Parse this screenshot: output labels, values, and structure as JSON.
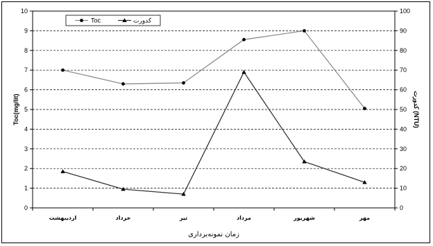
{
  "chart_data": {
    "type": "line",
    "categories": [
      "اردیبهشت",
      "خرداد",
      "تیر",
      "مرداد",
      "شهریور",
      "مهر"
    ],
    "series": [
      {
        "name": "Toc",
        "axis": "left",
        "values": [
          7.0,
          6.3,
          6.35,
          8.55,
          9.0,
          5.05
        ],
        "color": "#8c8c8c",
        "marker": "circle"
      },
      {
        "name": "کدورت",
        "axis": "right",
        "values": [
          18.5,
          9.5,
          7.0,
          69,
          23.5,
          13
        ],
        "color": "#333333",
        "marker": "triangle"
      }
    ],
    "xlabel": "زمان نمونه‌برداری",
    "ylabel": "Toc(mg/lit)",
    "y2label": "کدورت (NTU)",
    "ylim": [
      0,
      10
    ],
    "y2lim": [
      0,
      100
    ],
    "yticks": [
      "0",
      "1",
      "2",
      "3",
      "4",
      "5",
      "6",
      "7",
      "8",
      "9",
      "10"
    ],
    "y2ticks": [
      "0",
      "10",
      "20",
      "30",
      "40",
      "50",
      "60",
      "70",
      "80",
      "90",
      "100"
    ],
    "grid": true,
    "legend": "top-left"
  }
}
